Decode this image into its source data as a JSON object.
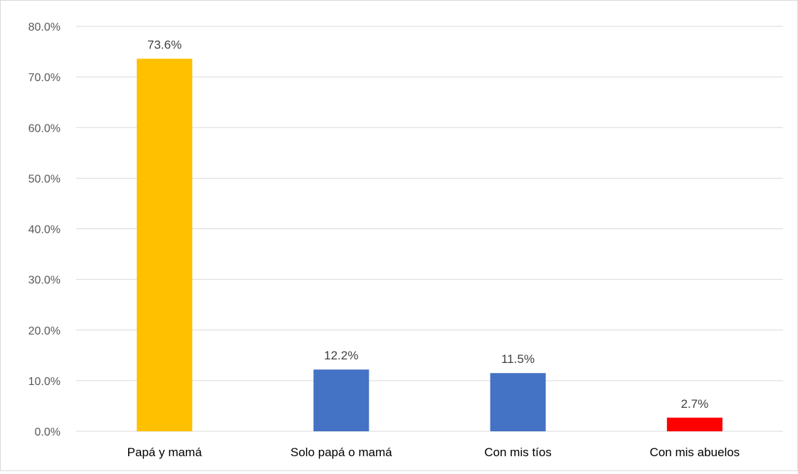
{
  "chart_data": {
    "type": "bar",
    "categories": [
      "Papá y mamá",
      "Solo papá o mamá",
      "Con mis tíos",
      "Con mis abuelos"
    ],
    "values": [
      73.6,
      12.2,
      11.5,
      2.7
    ],
    "data_labels": [
      "73.6%",
      "12.2%",
      "11.5%",
      "2.7%"
    ],
    "bar_colors": [
      "#FFC000",
      "#4472C4",
      "#4472C4",
      "#FF0000"
    ],
    "ylim": [
      0,
      80
    ],
    "yticks": [
      0,
      10,
      20,
      30,
      40,
      50,
      60,
      70,
      80
    ],
    "ytick_labels": [
      "0.0%",
      "10.0%",
      "20.0%",
      "30.0%",
      "40.0%",
      "50.0%",
      "60.0%",
      "70.0%",
      "80.0%"
    ],
    "grid": true,
    "legend": "none",
    "title": "",
    "xlabel": "",
    "ylabel": ""
  },
  "colors": {
    "grid": "#d9d9d9",
    "axis": "#d9d9d9",
    "label_text": "#404040",
    "tick_text": "#595959",
    "category_text": "#000000"
  }
}
